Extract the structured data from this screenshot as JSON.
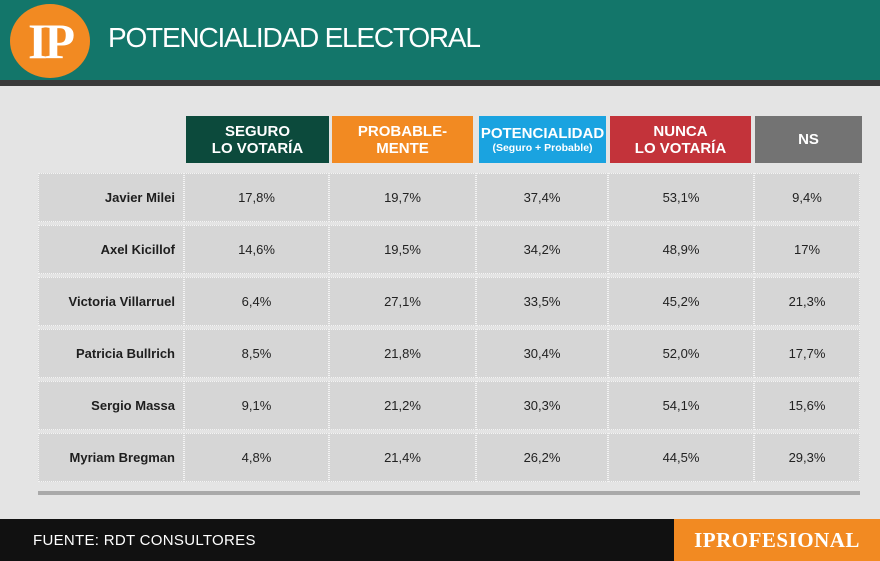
{
  "header": {
    "logo_text": "IP",
    "title": "POTENCIALIDAD ELECTORAL"
  },
  "colors": {
    "seguro": "#0c4a3c",
    "probable": "#f28a22",
    "potencialidad": "#1aa3e0",
    "nunca": "#c3333a",
    "ns": "#737373"
  },
  "chart_data": {
    "type": "table",
    "title": "POTENCIALIDAD ELECTORAL",
    "columns": [
      {
        "key": "seguro",
        "lines": [
          "SEGURO",
          "LO VOTARÍA"
        ],
        "sub": ""
      },
      {
        "key": "probable",
        "lines": [
          "PROBABLE-",
          "MENTE"
        ],
        "sub": ""
      },
      {
        "key": "potencialidad",
        "lines": [
          "POTENCIALIDAD"
        ],
        "sub": "(Seguro + Probable)"
      },
      {
        "key": "nunca",
        "lines": [
          "NUNCA",
          "LO VOTARÍA"
        ],
        "sub": ""
      },
      {
        "key": "ns",
        "lines": [
          "NS"
        ],
        "sub": ""
      }
    ],
    "rows": [
      {
        "name": "Javier Milei",
        "values": [
          "17,8%",
          "19,7%",
          "37,4%",
          "53,1%",
          "9,4%"
        ]
      },
      {
        "name": "Axel Kicillof",
        "values": [
          "14,6%",
          "19,5%",
          "34,2%",
          "48,9%",
          "17%"
        ]
      },
      {
        "name": "Victoria Villarruel",
        "values": [
          "6,4%",
          "27,1%",
          "33,5%",
          "45,2%",
          "21,3%"
        ]
      },
      {
        "name": "Patricia Bullrich",
        "values": [
          "8,5%",
          "21,8%",
          "30,4%",
          "52,0%",
          "17,7%"
        ]
      },
      {
        "name": "Sergio Massa",
        "values": [
          "9,1%",
          "21,2%",
          "30,3%",
          "54,1%",
          "15,6%"
        ]
      },
      {
        "name": "Myriam Bregman",
        "values": [
          "4,8%",
          "21,4%",
          "26,2%",
          "44,5%",
          "29,3%"
        ]
      }
    ]
  },
  "footer": {
    "source": "FUENTE: RDT CONSULTORES",
    "brand": "IPROFESIONAL"
  }
}
